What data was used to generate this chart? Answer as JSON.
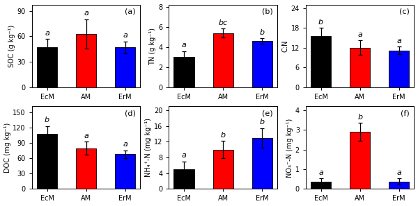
{
  "panels": [
    {
      "label": "(a)",
      "ylabel": "SOC (g kg⁻¹)",
      "categories": [
        "EcM",
        "AM",
        "ErM"
      ],
      "values": [
        47,
        63,
        47
      ],
      "errors": [
        10,
        17,
        7
      ],
      "colors": [
        "#000000",
        "#ff0000",
        "#0000ff"
      ],
      "sig_labels": [
        "a",
        "a",
        "a"
      ],
      "ylim": [
        0,
        97
      ],
      "yticks": [
        0,
        30,
        60,
        90
      ]
    },
    {
      "label": "(b)",
      "ylabel": "TN (g kg⁻¹)",
      "categories": [
        "EcM",
        "AM",
        "ErM"
      ],
      "values": [
        3.0,
        5.4,
        4.6
      ],
      "errors": [
        0.6,
        0.45,
        0.28
      ],
      "colors": [
        "#000000",
        "#ff0000",
        "#0000ff"
      ],
      "sig_labels": [
        "a",
        "bc",
        "b"
      ],
      "ylim": [
        0,
        8.2
      ],
      "yticks": [
        0,
        2,
        4,
        6,
        8
      ]
    },
    {
      "label": "(c)",
      "ylabel": "C:N",
      "categories": [
        "EcM",
        "AM",
        "ErM"
      ],
      "values": [
        15.5,
        12.0,
        11.2
      ],
      "errors": [
        2.5,
        2.2,
        1.1
      ],
      "colors": [
        "#000000",
        "#ff0000",
        "#0000ff"
      ],
      "sig_labels": [
        "b",
        "a",
        "a"
      ],
      "ylim": [
        0,
        25
      ],
      "yticks": [
        0,
        6,
        12,
        18,
        24
      ]
    },
    {
      "label": "(d)",
      "ylabel": "DOC (mg kg⁻¹)",
      "categories": [
        "EcM",
        "AM",
        "ErM"
      ],
      "values": [
        108,
        80,
        68
      ],
      "errors": [
        15,
        13,
        8
      ],
      "colors": [
        "#000000",
        "#ff0000",
        "#0000ff"
      ],
      "sig_labels": [
        "b",
        "a",
        "a"
      ],
      "ylim": [
        0,
        162
      ],
      "yticks": [
        0,
        30,
        60,
        90,
        120,
        150
      ]
    },
    {
      "label": "(e)",
      "ylabel": "NH₄⁺-N (mg kg⁻¹)",
      "categories": [
        "EcM",
        "AM",
        "ErM"
      ],
      "values": [
        5.0,
        10.0,
        13.0
      ],
      "errors": [
        2.0,
        2.2,
        2.5
      ],
      "colors": [
        "#000000",
        "#ff0000",
        "#0000ff"
      ],
      "sig_labels": [
        "a",
        "b",
        "b"
      ],
      "ylim": [
        0,
        21
      ],
      "yticks": [
        0,
        4,
        8,
        12,
        16,
        20
      ]
    },
    {
      "label": "(f)",
      "ylabel": "NO₃⁻-N (mg kg⁻¹)",
      "categories": [
        "EcM",
        "AM",
        "ErM"
      ],
      "values": [
        0.38,
        2.9,
        0.38
      ],
      "errors": [
        0.15,
        0.45,
        0.15
      ],
      "colors": [
        "#000000",
        "#ff0000",
        "#0000ff"
      ],
      "sig_labels": [
        "a",
        "b",
        "a"
      ],
      "ylim": [
        0,
        4.2
      ],
      "yticks": [
        0,
        1,
        2,
        3,
        4
      ]
    }
  ],
  "background_color": "#ffffff",
  "bar_width": 0.52,
  "fontsize_label": 7,
  "fontsize_tick": 7,
  "fontsize_sig": 8,
  "fontsize_panel": 8
}
